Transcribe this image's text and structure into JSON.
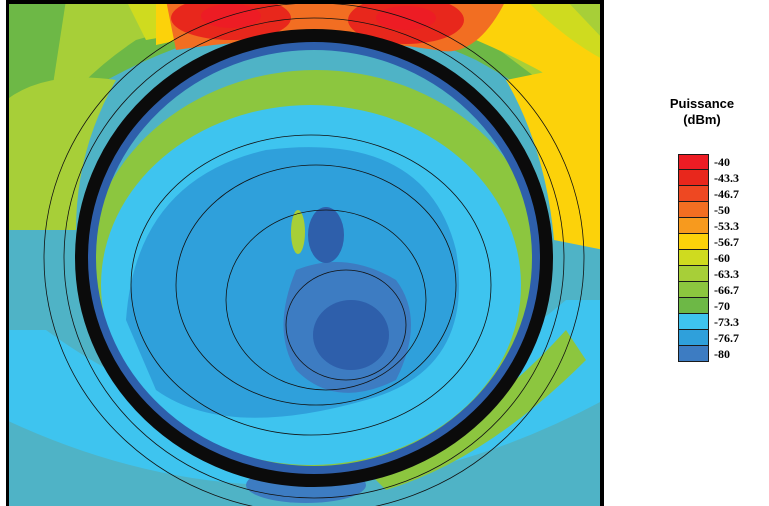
{
  "chart_data": {
    "type": "heatmap",
    "title": "",
    "legend": {
      "title_line1": "Puissance",
      "title_line2": "(dBm)",
      "placement": "right",
      "entries": [
        {
          "label": "-40",
          "value": -40,
          "color": "#ed1c24"
        },
        {
          "label": "-43.3",
          "value": -43.3,
          "color": "#e8271c"
        },
        {
          "label": "-46.7",
          "value": -46.7,
          "color": "#ee4822"
        },
        {
          "label": "-50",
          "value": -50,
          "color": "#f26e22"
        },
        {
          "label": "-53.3",
          "value": -53.3,
          "color": "#f79a1e"
        },
        {
          "label": "-56.7",
          "value": -56.7,
          "color": "#fcd20a"
        },
        {
          "label": "-60",
          "value": -60,
          "color": "#cfdb1f"
        },
        {
          "label": "-63.3",
          "value": -63.3,
          "color": "#a7cf38"
        },
        {
          "label": "-66.7",
          "value": -66.7,
          "color": "#8cc63f"
        },
        {
          "label": "-70",
          "value": -70,
          "color": "#6db846"
        },
        {
          "label": "-73.3",
          "value": -73.3,
          "color": "#3ec4ef"
        },
        {
          "label": "-76.7",
          "value": -76.7,
          "color": "#2fa0db"
        },
        {
          "label": "-80",
          "value": -80,
          "color": "#3d7cc2"
        }
      ]
    },
    "colors": {
      "background_level": "#4fb3c6",
      "interior_level": "#5ec8ea",
      "deep_level": "#2e5fab",
      "wall": "#0b0b0b",
      "contour_line": "#111111"
    },
    "grid": false
  }
}
